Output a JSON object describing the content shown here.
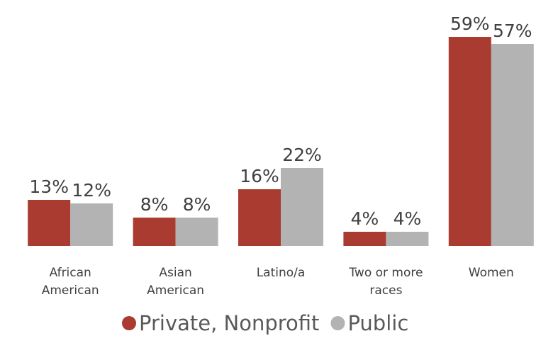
{
  "chart_data": {
    "type": "bar",
    "categories": [
      [
        "African",
        "American"
      ],
      [
        "Asian",
        "American"
      ],
      [
        "Latino/a"
      ],
      [
        "Two or more",
        "races"
      ],
      [
        "Women"
      ]
    ],
    "series": [
      {
        "name": "Private, Nonprofit",
        "color": "#a93b30",
        "values": [
          13,
          8,
          16,
          4,
          59
        ],
        "labels": [
          "13%",
          "8%",
          "16%",
          "4%",
          "59%"
        ]
      },
      {
        "name": "Public",
        "color": "#b3b3b3",
        "values": [
          12,
          8,
          22,
          4,
          57
        ],
        "labels": [
          "12%",
          "8%",
          "22%",
          "4%",
          "57%"
        ]
      }
    ],
    "unit": "%",
    "ylim": [
      0,
      59
    ],
    "legend_position": "bottom",
    "grid": false
  }
}
